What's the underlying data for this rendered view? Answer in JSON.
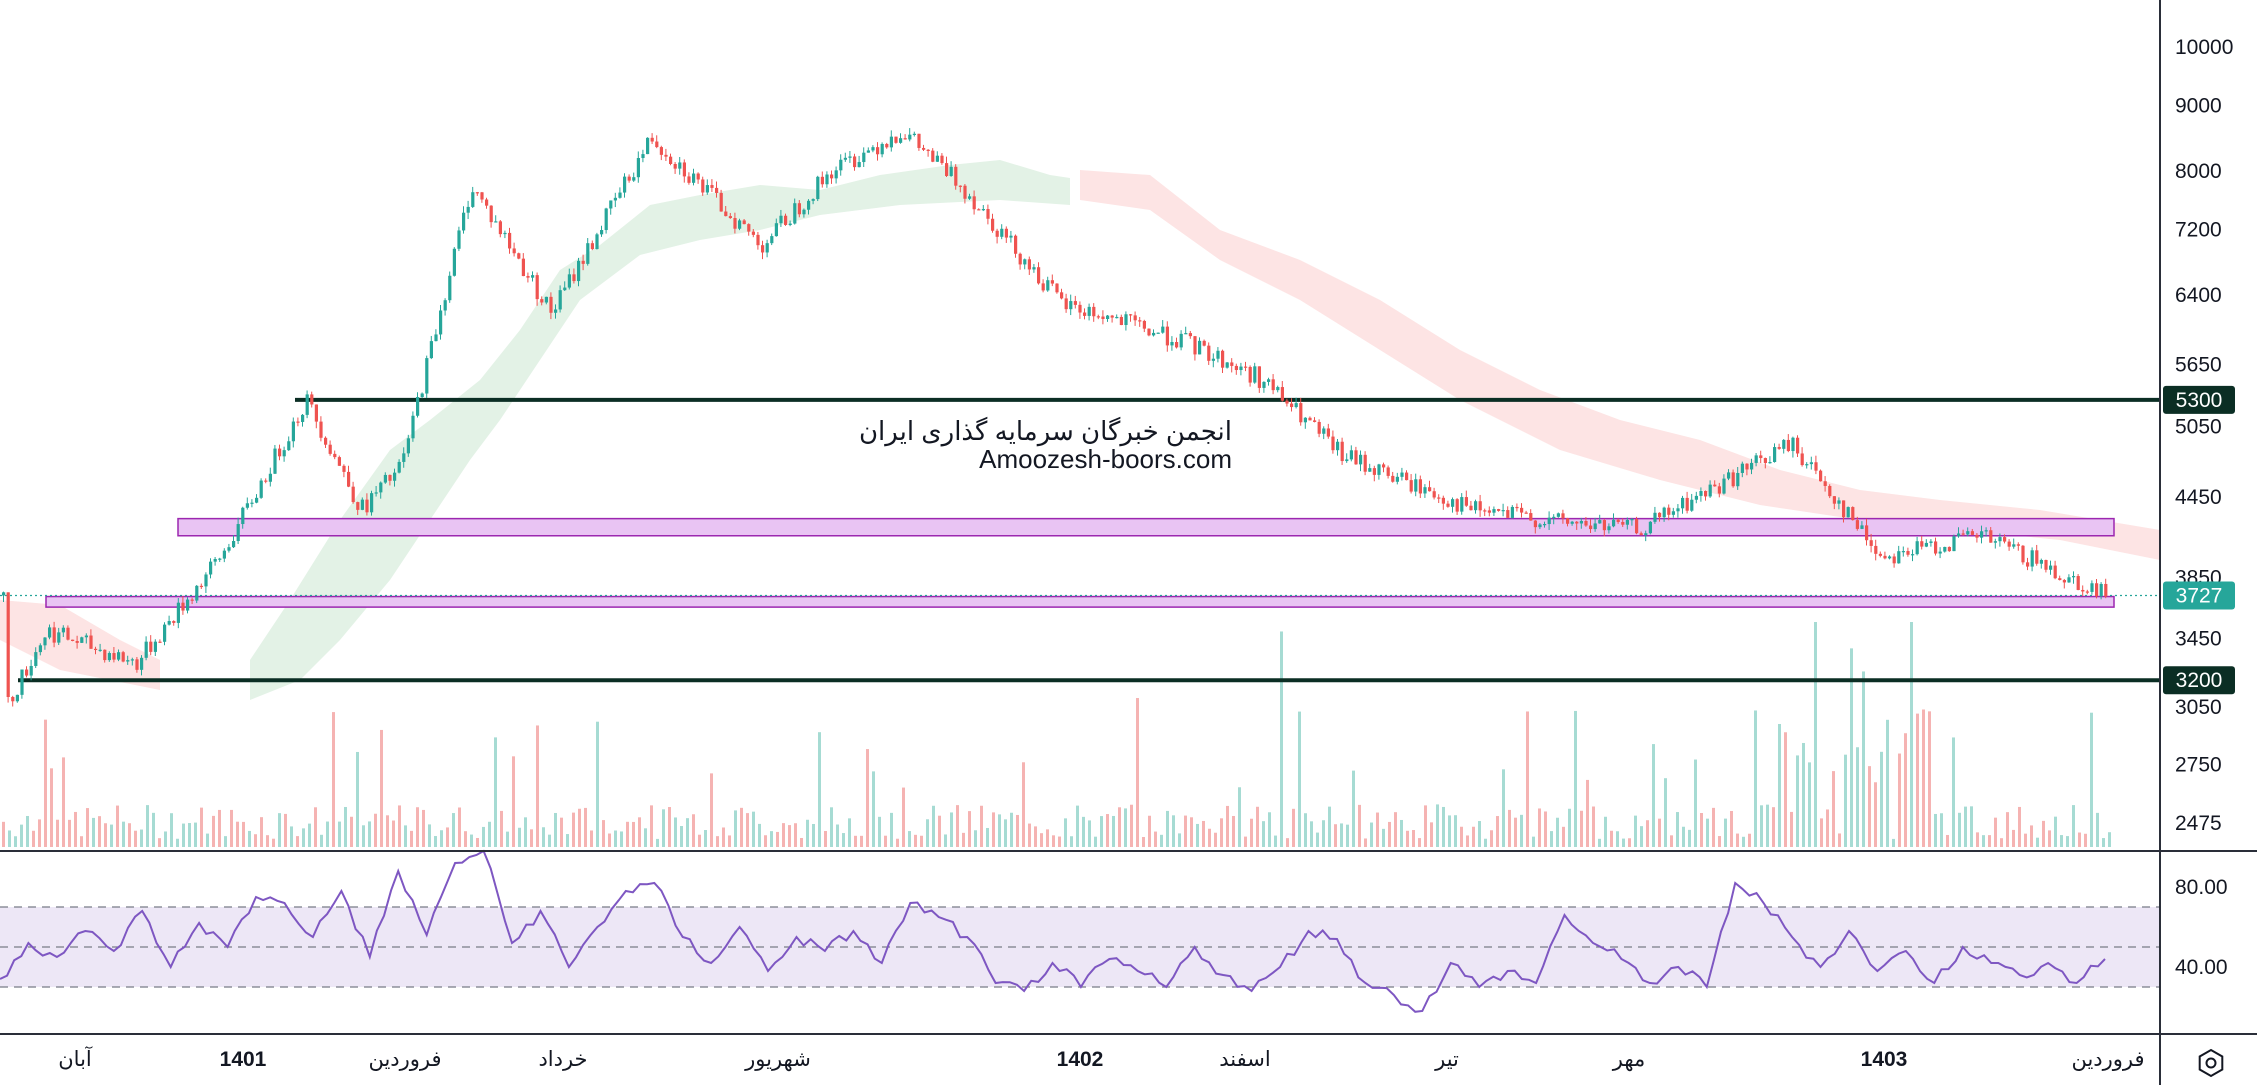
{
  "watermark": {
    "line1": "انجمن خبرگان سرمایه گذاری ایران",
    "line2": "Amoozesh-boors.com"
  },
  "settings_icon": "gear-hexagon-icon",
  "colors": {
    "up": "#26a69a",
    "down": "#ef5350",
    "level_line": "#0b2e24",
    "zone_fill": "#e9c4f3",
    "zone_stroke": "#9c27b0",
    "rsi_line": "#7e57c2",
    "rsi_band": "#ede7f6",
    "cloud_bull": "#e3f2e6",
    "cloud_bear": "#fde4e4",
    "last_price": "#26a69a"
  },
  "chart_data": [
    {
      "type": "candlestick",
      "scale": "log",
      "y_ticks": [
        "10000",
        "9000",
        "8000",
        "7200",
        "6400",
        "5650",
        "5050",
        "4450",
        "3850",
        "3450",
        "3050",
        "2750",
        "2475"
      ],
      "x_ticks": [
        {
          "label": "آبان",
          "bold": false
        },
        {
          "label": "1401",
          "bold": true
        },
        {
          "label": "فروردین",
          "bold": false
        },
        {
          "label": "خرداد",
          "bold": false
        },
        {
          "label": "شهریور",
          "bold": false
        },
        {
          "label": "1402",
          "bold": true
        },
        {
          "label": "اسفند",
          "bold": false
        },
        {
          "label": "تیر",
          "bold": false
        },
        {
          "label": "مهر",
          "bold": false
        },
        {
          "label": "1403",
          "bold": true
        },
        {
          "label": "فروردین",
          "bold": false
        }
      ],
      "last_price": "3727",
      "horizontal_levels": [
        "5300",
        "3200"
      ],
      "support_resistance_zones": [
        [
          4150,
          4280
        ],
        [
          3650,
          3720
        ]
      ],
      "price_path": [
        [
          "آبان",
          3050
        ],
        [
          "",
          3500
        ],
        [
          "",
          3300
        ],
        [
          "1401",
          4000
        ],
        [
          "",
          5300
        ],
        [
          "",
          4350
        ],
        [
          "فروردین",
          4700
        ],
        [
          "",
          7800
        ],
        [
          "خرداد",
          6200
        ],
        [
          "",
          8500
        ],
        [
          "",
          7000
        ],
        [
          "شهریور",
          8000
        ],
        [
          "",
          8600
        ],
        [
          "",
          7800
        ],
        [
          "1402",
          6300
        ],
        [
          "",
          5900
        ],
        [
          "اسفند",
          5500
        ],
        [
          "",
          4800
        ],
        [
          "تیر",
          4350
        ],
        [
          "",
          4250
        ],
        [
          "مهر",
          4200
        ],
        [
          "",
          4900
        ],
        [
          "1403",
          4000
        ],
        [
          "",
          4150
        ],
        [
          "فروردین",
          3727
        ]
      ],
      "indicators": [
        "Ichimoku cloud",
        "Volume"
      ]
    },
    {
      "type": "line",
      "name": "RSI",
      "y_ticks": [
        "80.00",
        "40.00"
      ],
      "bands": [
        30,
        50,
        70
      ],
      "values": [
        34,
        52,
        45,
        58,
        48,
        68,
        40,
        62,
        50,
        75,
        72,
        55,
        78,
        45,
        88,
        56,
        92,
        98,
        52,
        68,
        40,
        60,
        78,
        82,
        55,
        42,
        60,
        38,
        55,
        48,
        58,
        42,
        72,
        65,
        55,
        32,
        28,
        42,
        30,
        44,
        38,
        30,
        50,
        36,
        28,
        40,
        58,
        54,
        32,
        26,
        18,
        42,
        30,
        38,
        32,
        66,
        52,
        44,
        32,
        40,
        30,
        82,
        72,
        55,
        40,
        58,
        38,
        48,
        32,
        50,
        42,
        36,
        42,
        32,
        44
      ]
    }
  ]
}
